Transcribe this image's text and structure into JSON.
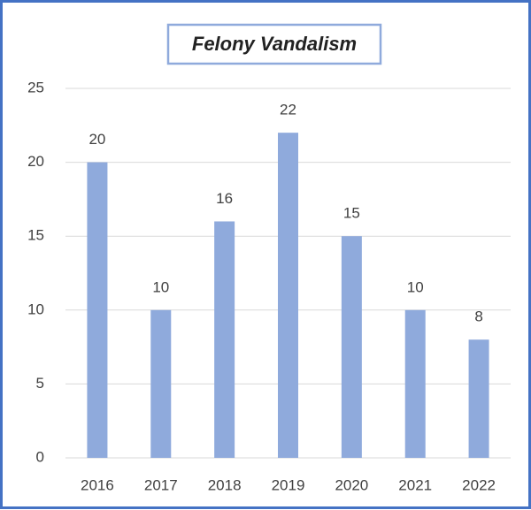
{
  "chart_data": {
    "type": "bar",
    "title": "Felony Vandalism",
    "categories": [
      "2016",
      "2017",
      "2018",
      "2019",
      "2020",
      "2021",
      "2022"
    ],
    "values": [
      20,
      10,
      16,
      22,
      15,
      10,
      8
    ],
    "color": "#8faadc",
    "ylim": [
      0,
      25
    ],
    "yticks": [
      0,
      5,
      10,
      15,
      20,
      25
    ],
    "grid": true,
    "data_labels": true
  }
}
